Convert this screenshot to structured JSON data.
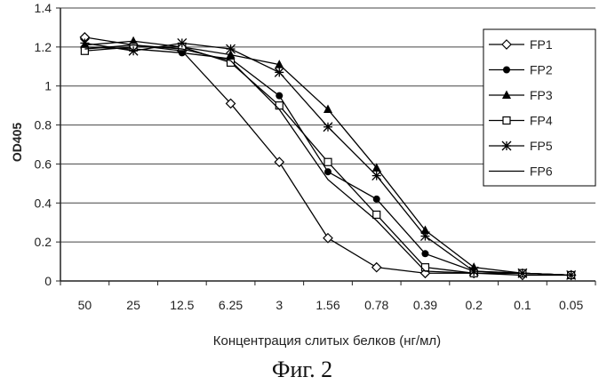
{
  "chart_data": {
    "type": "line",
    "title": "",
    "ylabel": "OD405",
    "xlabel": "Концентрация слитых белков (нг/мл)",
    "categories": [
      "50",
      "25",
      "12.5",
      "6.25",
      "3",
      "1.56",
      "0.78",
      "0.39",
      "0.2",
      "0.1",
      "0.05"
    ],
    "ylim": [
      0,
      1.4
    ],
    "yticks": [
      "0",
      "0.2",
      "0.4",
      "0.6",
      "0.8",
      "1",
      "1.2",
      "1.4"
    ],
    "grid": true,
    "legend": "right",
    "series": [
      {
        "name": "FP1",
        "marker": "diamond-open",
        "values": [
          1.25,
          1.21,
          1.18,
          0.91,
          0.61,
          0.22,
          0.07,
          0.04,
          0.04,
          0.03,
          0.03
        ]
      },
      {
        "name": "FP2",
        "marker": "circle-filled",
        "values": [
          1.2,
          1.19,
          1.17,
          1.14,
          0.95,
          0.56,
          0.42,
          0.14,
          0.05,
          0.04,
          0.03
        ]
      },
      {
        "name": "FP3",
        "marker": "triangle-filled",
        "values": [
          1.21,
          1.23,
          1.2,
          1.16,
          1.11,
          0.88,
          0.58,
          0.26,
          0.07,
          0.04,
          0.03
        ]
      },
      {
        "name": "FP4",
        "marker": "square-open",
        "values": [
          1.18,
          1.2,
          1.2,
          1.12,
          0.9,
          0.61,
          0.34,
          0.07,
          0.04,
          0.04,
          0.03
        ]
      },
      {
        "name": "FP5",
        "marker": "asterisk",
        "values": [
          1.22,
          1.18,
          1.22,
          1.19,
          1.07,
          0.79,
          0.54,
          0.23,
          0.05,
          0.04,
          0.03
        ]
      },
      {
        "name": "FP6",
        "marker": "none",
        "values": [
          1.19,
          1.21,
          1.19,
          1.13,
          0.88,
          0.52,
          0.31,
          0.05,
          0.04,
          0.04,
          0.03
        ]
      }
    ]
  },
  "caption": "Фиг. 2"
}
